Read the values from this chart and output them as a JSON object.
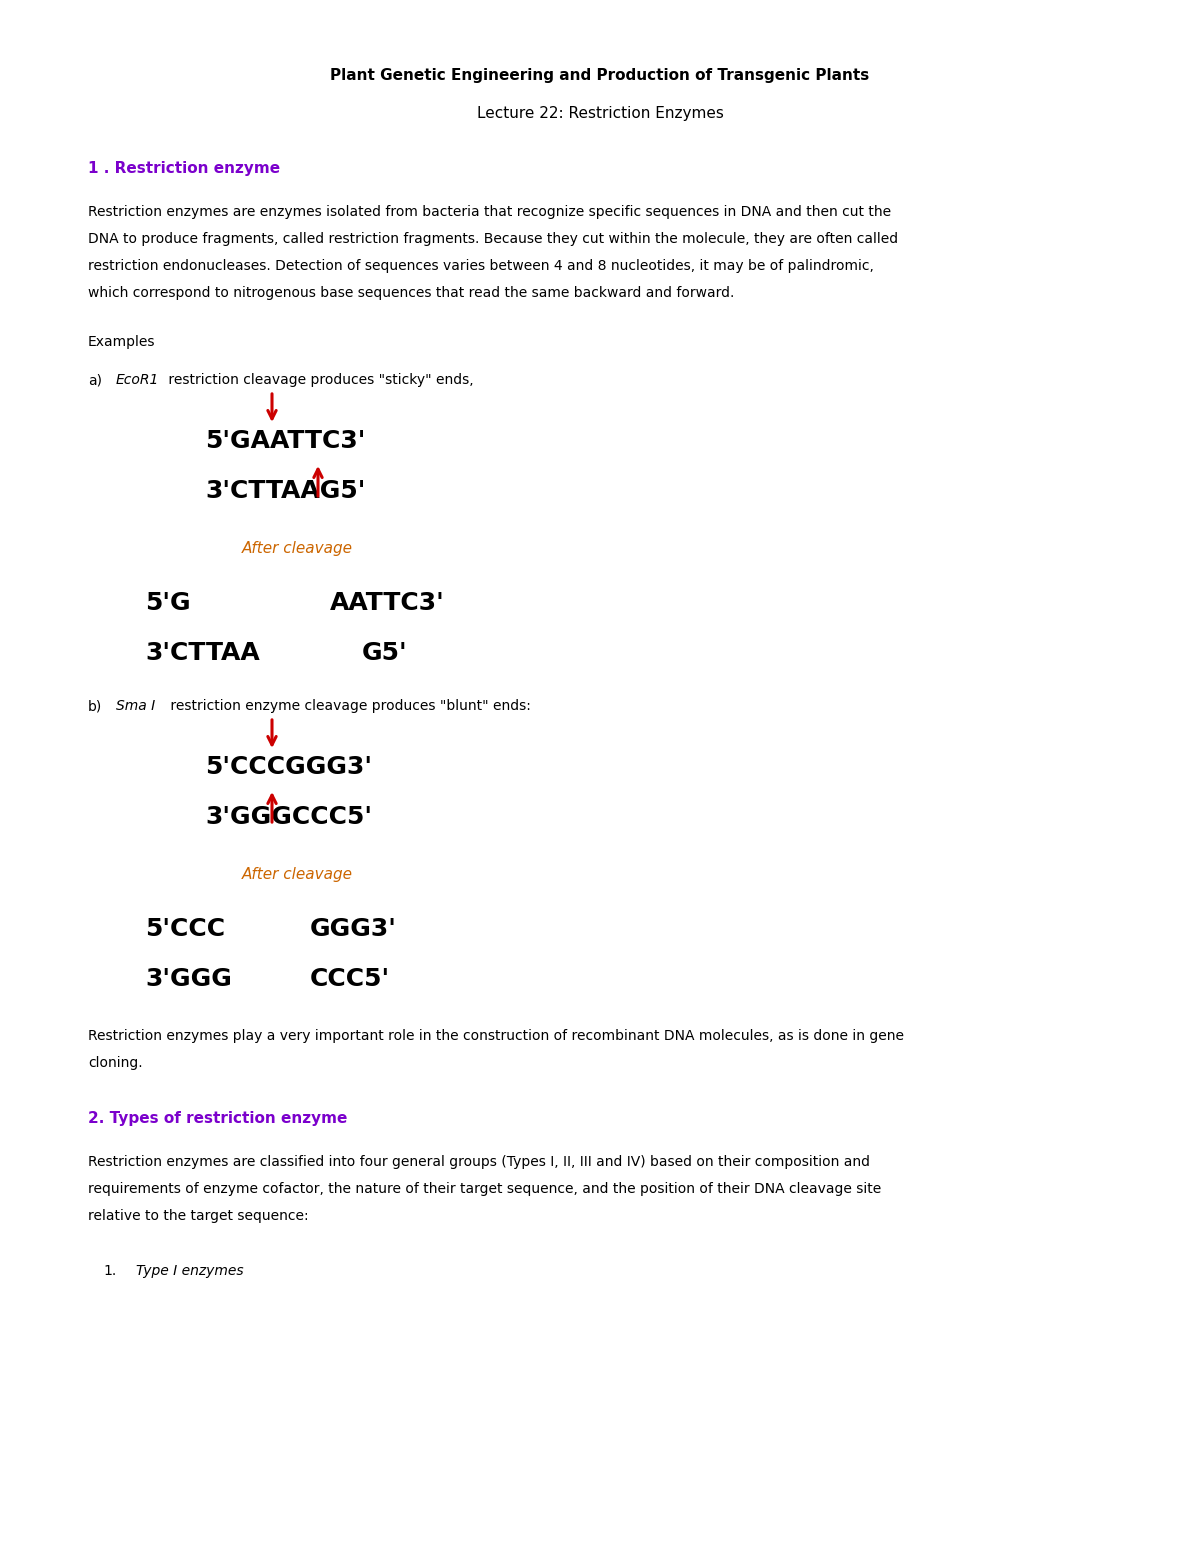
{
  "title1": "Plant Genetic Engineering and Production of Transgenic Plants",
  "title2": "Lecture 22: Restriction Enzymes",
  "section1_heading": "1 . Restriction enzyme",
  "section1_body_lines": [
    "Restriction enzymes are enzymes isolated from bacteria that recognize specific sequences in DNA and then cut the",
    "DNA to produce fragments, called restriction fragments. Because they cut within the molecule, they are often called",
    "restriction endonucleases. Detection of sequences varies between 4 and 8 nucleotides, it may be of palindromic,",
    "which correspond to nitrogenous base sequences that read the same backward and forward."
  ],
  "examples_label": "Examples",
  "example_a_label": "a)",
  "example_a_italic": "EcoR1",
  "example_a_rest": " restriction cleavage produces \"sticky\" ends,",
  "ecor1_line1": "5'GAATTC3'",
  "ecor1_line2": "3'CTTAAG5'",
  "after_cleavage": "After cleavage",
  "ecor1_after_line1_left": "5'G",
  "ecor1_after_line1_right": "AATTC3'",
  "ecor1_after_line2_left": "3'CTTAA",
  "ecor1_after_line2_right": "G5'",
  "example_b_label": "b)",
  "example_b_italic": "Sma I",
  "example_b_rest": " restriction enzyme cleavage produces \"blunt\" ends:",
  "smai_line1": "5'CCCGGG3'",
  "smai_line2": "3'GGGCCC5'",
  "smai_after_line1_left": "5'CCC",
  "smai_after_line1_right": "GGG3'",
  "smai_after_line2_left": "3'GGG",
  "smai_after_line2_right": "CCC5'",
  "closing_para_lines": [
    "Restriction enzymes play a very important role in the construction of recombinant DNA molecules, as is done in gene",
    "cloning."
  ],
  "section2_heading": "2. Types of restriction enzyme",
  "section2_body_lines": [
    "Restriction enzymes are classified into four general groups (Types I, II, III and IV) based on their composition and",
    "requirements of enzyme cofactor, the nature of their target sequence, and the position of their DNA cleavage site",
    "relative to the target sequence:"
  ],
  "type1_label": "1.",
  "type1_italic": "Type I enzymes",
  "bg_color": "#ffffff",
  "text_color": "#000000",
  "heading_color": "#7B00CC",
  "red_color": "#cc0000",
  "dna_color": "#000000",
  "after_cleavage_color": "#cc6600",
  "fig_width": 12.0,
  "fig_height": 15.53,
  "dpi": 100
}
